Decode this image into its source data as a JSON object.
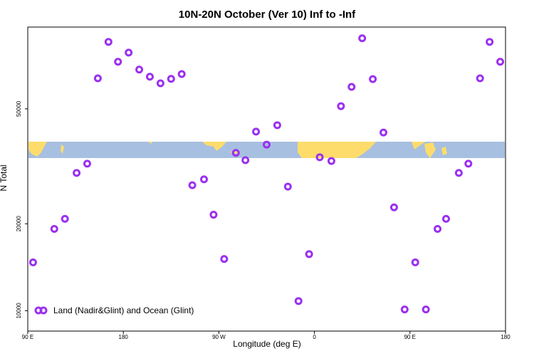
{
  "chart_data": {
    "type": "scatter",
    "title": "10N-20N October (Ver 10)   Inf to -Inf",
    "xlabel": "Longitude (deg E)",
    "ylabel": "N Total",
    "xlim": [
      90,
      540
    ],
    "xticks": [
      {
        "value": 90,
        "label": "90 E"
      },
      180,
      {
        "value": 270,
        "label": "90 W"
      },
      {
        "value": 360,
        "label": "0"
      },
      {
        "value": 450,
        "label": "90 E"
      },
      {
        "value": 540,
        "label": "180"
      }
    ],
    "ylim": [
      8500,
      96000
    ],
    "yticks": [
      10000,
      20000,
      50000
    ],
    "yscale": "log",
    "legend": "bottom-left",
    "series": [
      {
        "name": "Land (Nadir&Glint) and Ocean (Glint)",
        "color": "#9b30f0",
        "x": [
          95,
          115,
          125,
          136,
          146,
          156,
          166,
          175,
          185,
          195,
          205,
          215,
          225,
          235,
          245,
          256,
          265,
          275,
          286,
          295,
          305,
          315,
          325,
          335,
          345,
          355,
          365,
          376,
          385,
          395,
          405,
          415,
          425,
          435,
          445,
          455,
          465,
          476,
          484,
          496,
          505,
          516,
          525,
          535
        ],
        "values": [
          14700,
          19200,
          20800,
          30000,
          32300,
          63800,
          85300,
          72800,
          78300,
          68400,
          64600,
          61300,
          63500,
          66000,
          27200,
          28500,
          21500,
          15100,
          35200,
          33200,
          41700,
          37600,
          43900,
          26900,
          10800,
          15700,
          34000,
          33000,
          51100,
          59600,
          87800,
          63400,
          41400,
          22800,
          10100,
          14700,
          10100,
          19200,
          20800,
          30000,
          32300,
          63800,
          85300,
          72800
        ]
      }
    ]
  }
}
